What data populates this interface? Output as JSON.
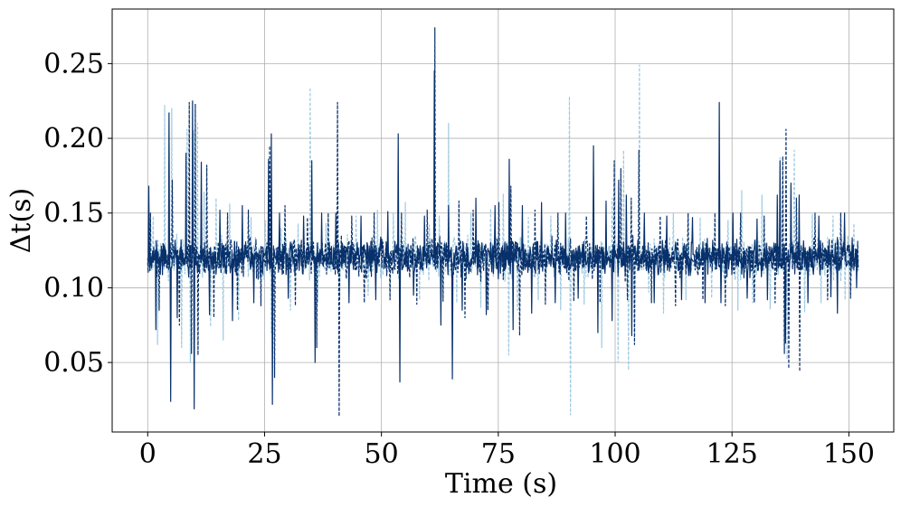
{
  "chart_data": {
    "type": "line",
    "title": "",
    "xlabel": "Time (s)",
    "ylabel": "Δt(s)",
    "xlim": [
      -7.6,
      159.6
    ],
    "ylim": [
      0.0035,
      0.2865
    ],
    "grid": true,
    "legend": "none",
    "x_ticks": [
      0,
      25,
      50,
      75,
      100,
      125,
      150
    ],
    "x_tick_labels": [
      "0",
      "25",
      "50",
      "75",
      "100",
      "125",
      "150"
    ],
    "y_ticks": [
      0.05,
      0.1,
      0.15,
      0.2,
      0.25
    ],
    "y_tick_labels": [
      "0.05",
      "0.10",
      "0.15",
      "0.20",
      "0.25"
    ],
    "series": [
      {
        "style": "dashed",
        "color": "#9ecae1",
        "x_range": [
          0,
          152
        ],
        "baseline": 0.12,
        "noise_amplitude": 0.012,
        "spikes": [
          [
            1.2,
            0.148
          ],
          [
            2.1,
            0.062
          ],
          [
            3.6,
            0.222
          ],
          [
            5.1,
            0.22
          ],
          [
            7.3,
            0.06
          ],
          [
            8.4,
            0.206
          ],
          [
            9.1,
            0.05
          ],
          [
            9.8,
            0.205
          ],
          [
            10.7,
            0.21
          ],
          [
            12.1,
            0.164
          ],
          [
            13.4,
            0.074
          ],
          [
            14.6,
            0.16
          ],
          [
            16.1,
            0.065
          ],
          [
            17.6,
            0.156
          ],
          [
            19.4,
            0.078
          ],
          [
            22.1,
            0.147
          ],
          [
            25.2,
            0.145
          ],
          [
            26.4,
            0.07
          ],
          [
            28.6,
            0.14
          ],
          [
            30.5,
            0.085
          ],
          [
            32.2,
            0.143
          ],
          [
            34.8,
            0.234
          ],
          [
            36.4,
            0.09
          ],
          [
            38.2,
            0.143
          ],
          [
            41.1,
            0.093
          ],
          [
            44.6,
            0.148
          ],
          [
            47.2,
            0.095
          ],
          [
            49.1,
            0.152
          ],
          [
            52.5,
            0.15
          ],
          [
            55.1,
            0.157
          ],
          [
            58.2,
            0.092
          ],
          [
            60.3,
            0.142
          ],
          [
            62.4,
            0.148
          ],
          [
            64.3,
            0.21
          ],
          [
            66.1,
            0.09
          ],
          [
            69.2,
            0.15
          ],
          [
            71.3,
            0.087
          ],
          [
            73.4,
            0.153
          ],
          [
            76.1,
            0.163
          ],
          [
            77.2,
            0.055
          ],
          [
            79.1,
            0.085
          ],
          [
            81.4,
            0.147
          ],
          [
            83.6,
            0.092
          ],
          [
            86.2,
            0.148
          ],
          [
            88.3,
            0.085
          ],
          [
            90.2,
            0.228
          ],
          [
            90.4,
            0.015
          ],
          [
            93.4,
            0.089
          ],
          [
            95.2,
            0.15
          ],
          [
            97.1,
            0.06
          ],
          [
            99.3,
            0.16
          ],
          [
            100.6,
            0.05
          ],
          [
            101.8,
            0.192
          ],
          [
            102.9,
            0.045
          ],
          [
            104.1,
            0.07
          ],
          [
            105.2,
            0.249
          ],
          [
            107.2,
            0.097
          ],
          [
            110.3,
            0.083
          ],
          [
            112.5,
            0.15
          ],
          [
            115.1,
            0.092
          ],
          [
            118.2,
            0.147
          ],
          [
            120.6,
            0.093
          ],
          [
            124.2,
            0.145
          ],
          [
            126.3,
            0.085
          ],
          [
            127.1,
            0.165
          ],
          [
            129.4,
            0.09
          ],
          [
            131.4,
            0.162
          ],
          [
            133.2,
            0.086
          ],
          [
            135.3,
            0.187
          ],
          [
            136.8,
            0.052
          ],
          [
            138.3,
            0.192
          ],
          [
            140.5,
            0.084
          ],
          [
            142.2,
            0.149
          ],
          [
            144.1,
            0.09
          ],
          [
            146.6,
            0.148
          ],
          [
            149.2,
            0.092
          ],
          [
            151.1,
            0.143
          ]
        ]
      },
      {
        "style": "solid",
        "color": "#08306b",
        "x_range": [
          0,
          152
        ],
        "baseline": 0.12,
        "noise_amplitude": 0.01,
        "spikes": [
          [
            0.2,
            0.168
          ],
          [
            1.8,
            0.072
          ],
          [
            4.6,
            0.217
          ],
          [
            4.9,
            0.024
          ],
          [
            6.3,
            0.08
          ],
          [
            8.2,
            0.19
          ],
          [
            9.6,
            0.225
          ],
          [
            9.9,
            0.019
          ],
          [
            11.5,
            0.184
          ],
          [
            13.2,
            0.082
          ],
          [
            15.4,
            0.152
          ],
          [
            18.1,
            0.078
          ],
          [
            20.3,
            0.155
          ],
          [
            22.7,
            0.09
          ],
          [
            25.9,
            0.186
          ],
          [
            26.4,
            0.203
          ],
          [
            26.7,
            0.022
          ],
          [
            28.2,
            0.15
          ],
          [
            30.1,
            0.093
          ],
          [
            33.4,
            0.148
          ],
          [
            35.1,
            0.185
          ],
          [
            35.8,
            0.05
          ],
          [
            37.2,
            0.15
          ],
          [
            40.2,
            0.15
          ],
          [
            43.1,
            0.09
          ],
          [
            45.6,
            0.148
          ],
          [
            48.8,
            0.092
          ],
          [
            51.4,
            0.151
          ],
          [
            53.6,
            0.203
          ],
          [
            53.9,
            0.037
          ],
          [
            56.9,
            0.095
          ],
          [
            59.2,
            0.148
          ],
          [
            61.3,
            0.245
          ],
          [
            62.7,
            0.075
          ],
          [
            64.4,
            0.155
          ],
          [
            65.2,
            0.039
          ],
          [
            67.3,
            0.085
          ],
          [
            70.2,
            0.16
          ],
          [
            72.4,
            0.082
          ],
          [
            74.3,
            0.155
          ],
          [
            77.4,
            0.186
          ],
          [
            78.2,
            0.072
          ],
          [
            80.2,
            0.155
          ],
          [
            82.1,
            0.083
          ],
          [
            84.3,
            0.157
          ],
          [
            87.2,
            0.09
          ],
          [
            89.4,
            0.15
          ],
          [
            92.1,
            0.093
          ],
          [
            95.4,
            0.195
          ],
          [
            96.3,
            0.07
          ],
          [
            98.1,
            0.158
          ],
          [
            99.4,
            0.078
          ],
          [
            100.8,
            0.172
          ],
          [
            102.4,
            0.162
          ],
          [
            103.6,
            0.068
          ],
          [
            106.2,
            0.15
          ],
          [
            108.3,
            0.09
          ],
          [
            111.1,
            0.148
          ],
          [
            114.2,
            0.092
          ],
          [
            116.6,
            0.147
          ],
          [
            119.2,
            0.09
          ],
          [
            122.3,
            0.224
          ],
          [
            122.6,
            0.09
          ],
          [
            125.2,
            0.15
          ],
          [
            128.2,
            0.093
          ],
          [
            130.3,
            0.146
          ],
          [
            132.6,
            0.092
          ],
          [
            134.7,
            0.162
          ],
          [
            135.3,
            0.185
          ],
          [
            136.4,
            0.063
          ],
          [
            137.6,
            0.17
          ],
          [
            139.4,
            0.162
          ],
          [
            141.2,
            0.09
          ],
          [
            143.6,
            0.148
          ],
          [
            146.2,
            0.094
          ],
          [
            147.5,
            0.083
          ],
          [
            149.1,
            0.15
          ],
          [
            151.6,
            0.1
          ]
        ]
      },
      {
        "style": "dashed",
        "color": "#08306b",
        "x_range": [
          0,
          152
        ],
        "baseline": 0.12,
        "noise_amplitude": 0.011,
        "spikes": [
          [
            0.6,
            0.15
          ],
          [
            2.5,
            0.085
          ],
          [
            5.3,
            0.172
          ],
          [
            6.8,
            0.075
          ],
          [
            8.9,
            0.224
          ],
          [
            9.4,
            0.056
          ],
          [
            10.2,
            0.223
          ],
          [
            10.8,
            0.055
          ],
          [
            12.6,
            0.182
          ],
          [
            14.2,
            0.08
          ],
          [
            17.1,
            0.15
          ],
          [
            19.2,
            0.085
          ],
          [
            21.5,
            0.152
          ],
          [
            24.2,
            0.088
          ],
          [
            26.1,
            0.195
          ],
          [
            27.1,
            0.04
          ],
          [
            29.4,
            0.155
          ],
          [
            31.6,
            0.088
          ],
          [
            34.2,
            0.147
          ],
          [
            36.1,
            0.06
          ],
          [
            38.6,
            0.15
          ],
          [
            40.6,
            0.224
          ],
          [
            40.9,
            0.014
          ],
          [
            43.7,
            0.148
          ],
          [
            46.3,
            0.09
          ],
          [
            48.5,
            0.15
          ],
          [
            51.8,
            0.092
          ],
          [
            54.3,
            0.15
          ],
          [
            57.6,
            0.089
          ],
          [
            59.8,
            0.152
          ],
          [
            61.4,
            0.274
          ],
          [
            63.2,
            0.091
          ],
          [
            66.6,
            0.158
          ],
          [
            67.9,
            0.08
          ],
          [
            69.6,
            0.152
          ],
          [
            72.8,
            0.085
          ],
          [
            75.1,
            0.157
          ],
          [
            77.7,
            0.168
          ],
          [
            79.6,
            0.068
          ],
          [
            82.8,
            0.152
          ],
          [
            85.1,
            0.089
          ],
          [
            87.8,
            0.15
          ],
          [
            91.1,
            0.091
          ],
          [
            93.8,
            0.148
          ],
          [
            96.8,
            0.09
          ],
          [
            99.8,
            0.185
          ],
          [
            101.2,
            0.18
          ],
          [
            102.6,
            0.092
          ],
          [
            103.4,
            0.16
          ],
          [
            104.2,
            0.062
          ],
          [
            105.1,
            0.192
          ],
          [
            107.8,
            0.09
          ],
          [
            109.6,
            0.148
          ],
          [
            112.9,
            0.088
          ],
          [
            115.6,
            0.15
          ],
          [
            118.8,
            0.092
          ],
          [
            121.4,
            0.15
          ],
          [
            123.6,
            0.088
          ],
          [
            126.9,
            0.15
          ],
          [
            129.8,
            0.09
          ],
          [
            131.9,
            0.148
          ],
          [
            134.2,
            0.09
          ],
          [
            135.8,
            0.188
          ],
          [
            136.2,
            0.056
          ],
          [
            136.6,
            0.206
          ],
          [
            137.1,
            0.046
          ],
          [
            138.8,
            0.16
          ],
          [
            139.5,
            0.044
          ],
          [
            142.8,
            0.15
          ],
          [
            145.4,
            0.092
          ],
          [
            148.3,
            0.15
          ],
          [
            150.4,
            0.093
          ],
          [
            152.0,
            0.112
          ]
        ]
      }
    ]
  }
}
